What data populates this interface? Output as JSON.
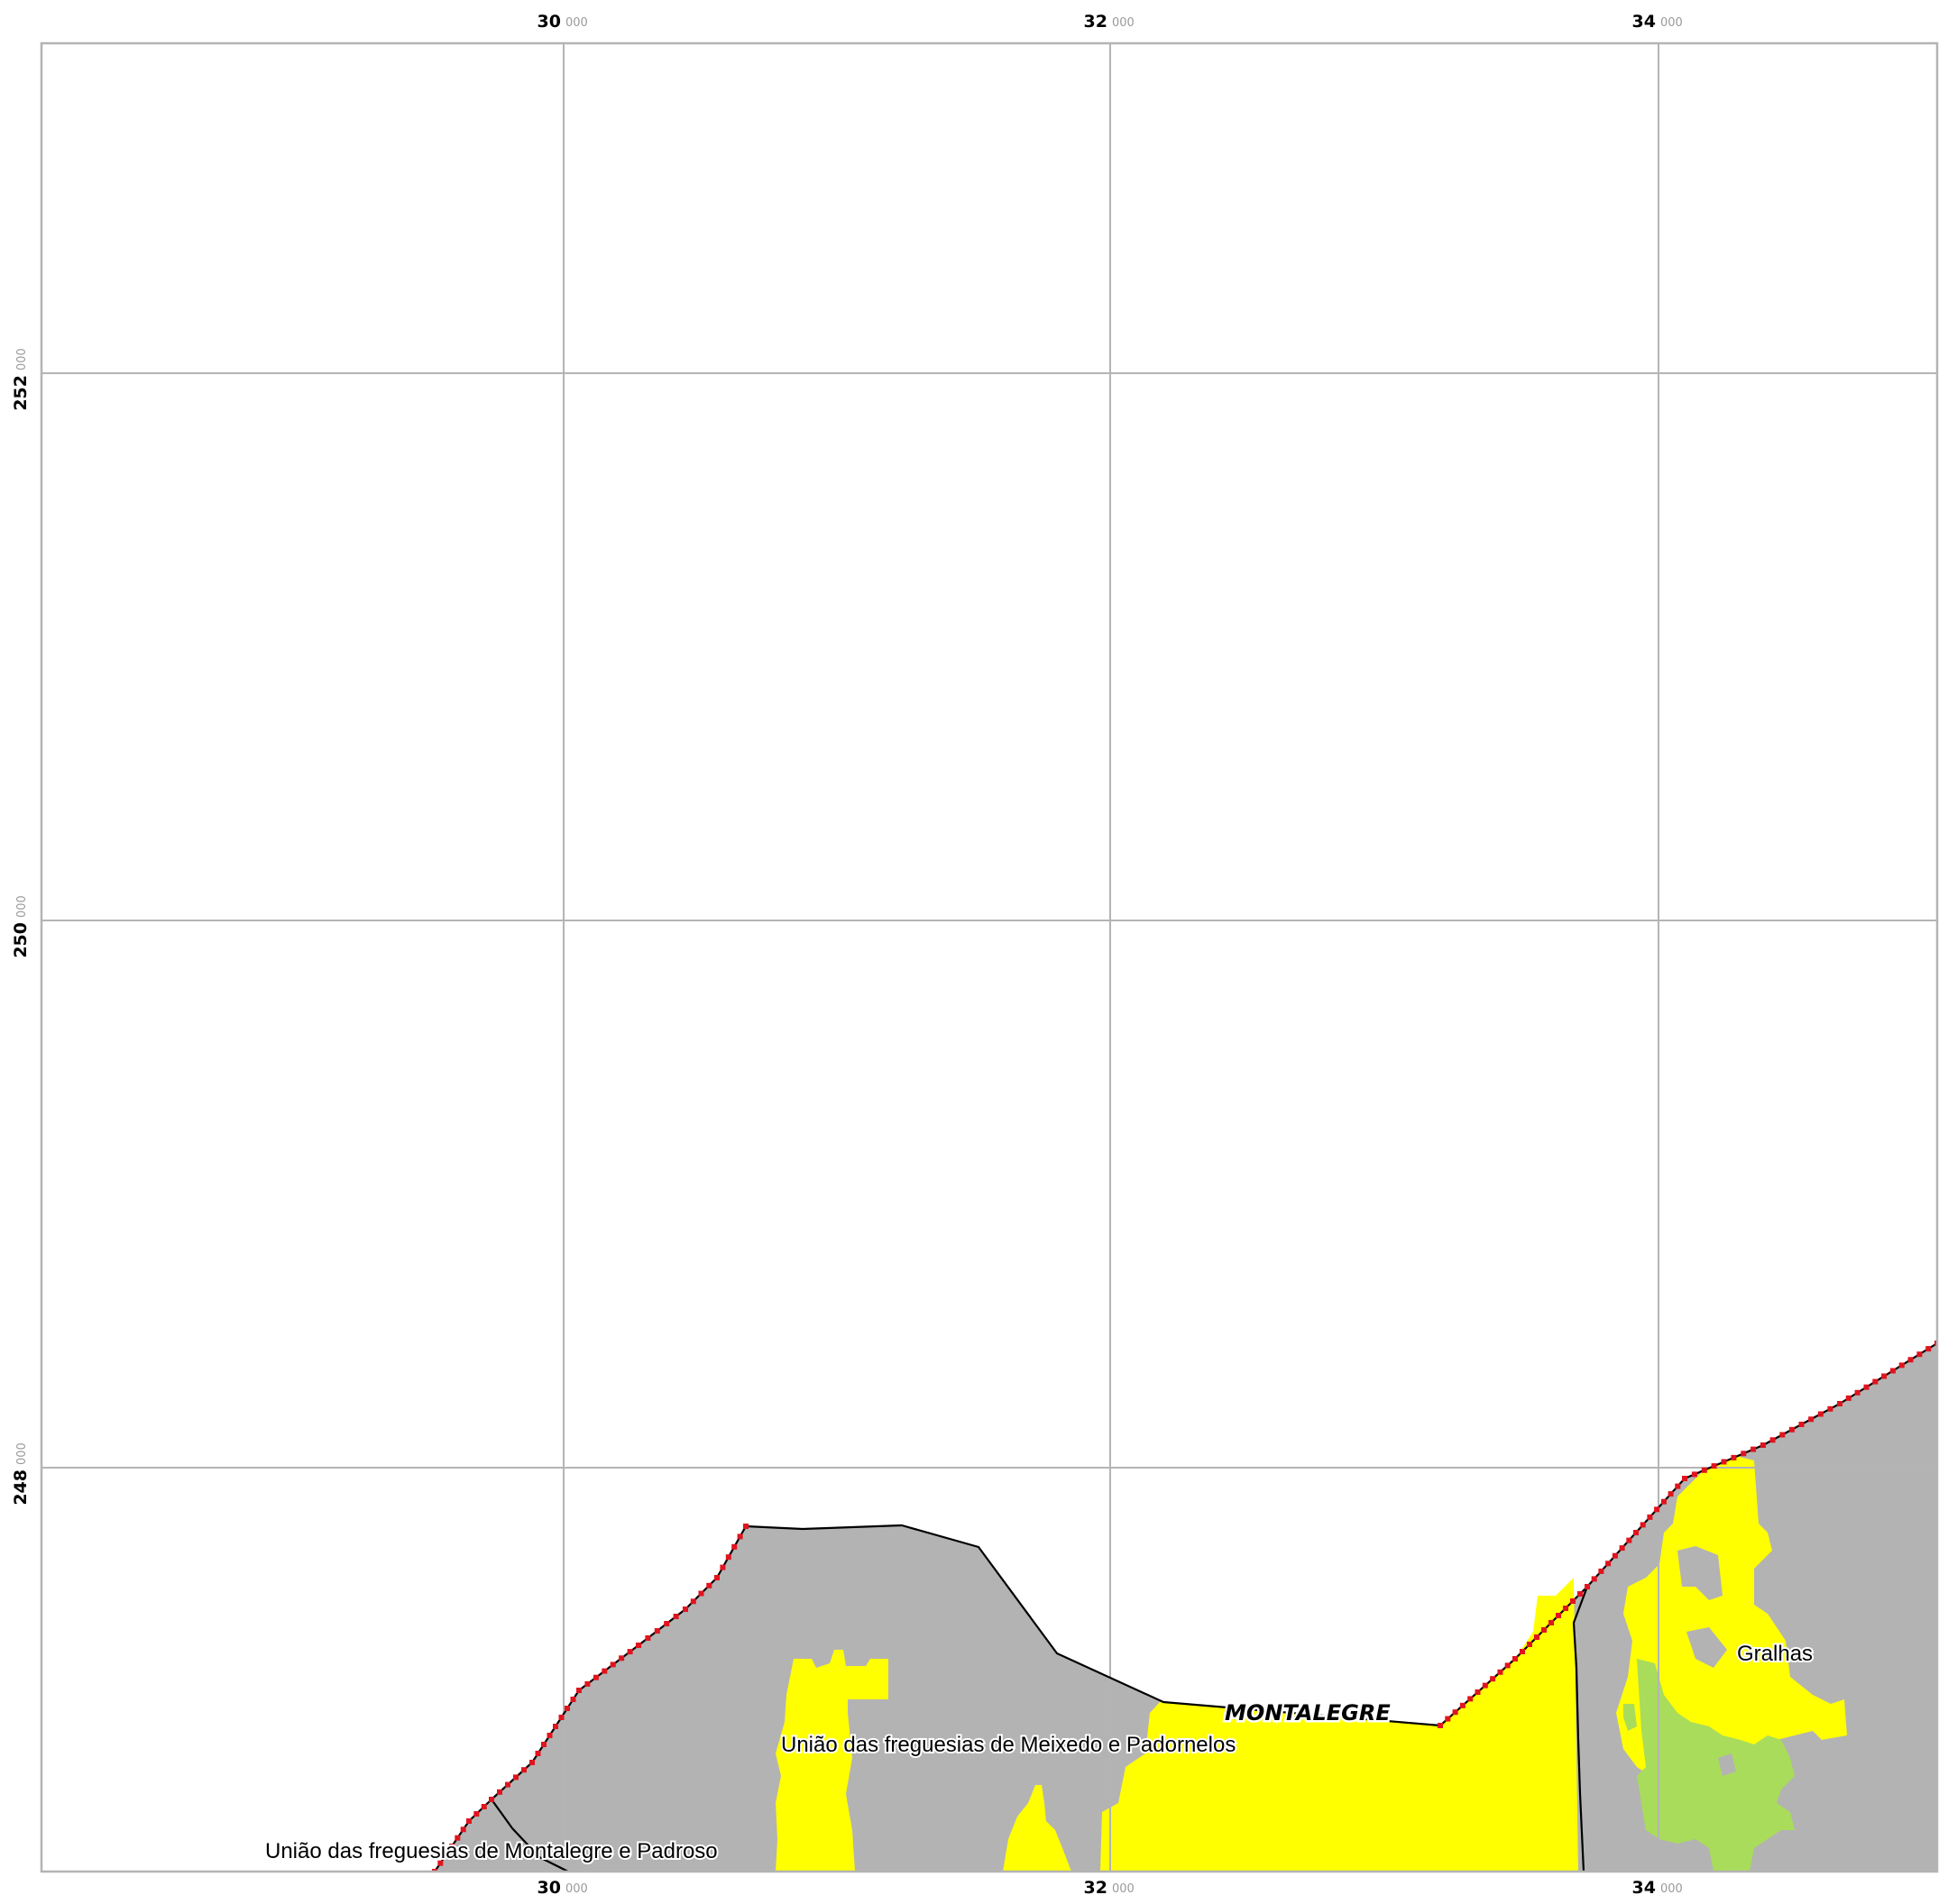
{
  "map": {
    "frame": {
      "border_color": "#b4b4b4",
      "grid_color": "#b4b4b4"
    },
    "x_ticks": [
      {
        "major": "30",
        "minor": "000"
      },
      {
        "major": "32",
        "minor": "000"
      },
      {
        "major": "34",
        "minor": "000"
      }
    ],
    "y_ticks": [
      {
        "major": "252",
        "minor": "000"
      },
      {
        "major": "250",
        "minor": "000"
      },
      {
        "major": "248",
        "minor": "000"
      }
    ],
    "colors": {
      "region_fill": "#b3b3b3",
      "yellow_zone": "#ffff00",
      "green_zone": "#a9dc5a",
      "border_marker": "#e0141e",
      "boundary_line": "#000000"
    },
    "labels": {
      "municipality": "MONTALEGRE",
      "parish_meixedo": "União das freguesias de Meixedo e Padornelos",
      "parish_montalegre": "União das freguesias de Montalegre e Padroso",
      "parish_gralhas": "Gralhas"
    }
  }
}
